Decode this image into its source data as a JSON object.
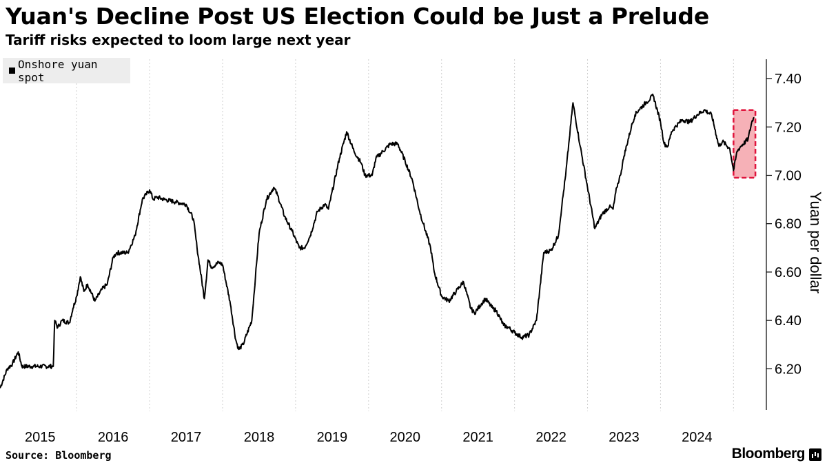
{
  "chart_data": {
    "type": "line",
    "title": "Yuan's Decline Post US Election Could be Just a Prelude",
    "subtitle": "Tariff risks expected to loom large next year",
    "ylabel": "Yuan per dollar",
    "xlabel": "",
    "ylim": [
      6.03,
      7.48
    ],
    "xlim": [
      2014.45,
      2024.95
    ],
    "y_ticks": [
      6.2,
      6.4,
      6.6,
      6.8,
      7.0,
      7.2,
      7.4
    ],
    "y_tick_labels": [
      "6.20",
      "6.40",
      "6.60",
      "6.80",
      "7.00",
      "7.20",
      "7.40"
    ],
    "x_ticks": [
      2015,
      2016,
      2017,
      2018,
      2019,
      2020,
      2021,
      2022,
      2023,
      2024
    ],
    "x_tick_labels": [
      "2015",
      "2016",
      "2017",
      "2018",
      "2019",
      "2020",
      "2021",
      "2022",
      "2023",
      "2024"
    ],
    "grid": "vertical dashed",
    "legend": {
      "label": "Onshore yuan spot",
      "position": "top-left"
    },
    "highlight": {
      "x_range": [
        2024.5,
        2024.8
      ],
      "y_range": [
        6.99,
        7.27
      ],
      "color": "#f4a3aa"
    },
    "series": [
      {
        "name": "Onshore yuan spot",
        "color": "#000000",
        "x": [
          2014.45,
          2014.55,
          2014.62,
          2014.7,
          2014.75,
          2014.8,
          2014.9,
          2015.0,
          2015.18,
          2015.2,
          2015.24,
          2015.3,
          2015.4,
          2015.45,
          2015.5,
          2015.55,
          2015.6,
          2015.65,
          2015.75,
          2015.85,
          2015.92,
          2016.0,
          2016.05,
          2016.2,
          2016.3,
          2016.4,
          2016.45,
          2016.5,
          2016.55,
          2016.6,
          2016.7,
          2016.85,
          2017.0,
          2017.1,
          2017.15,
          2017.25,
          2017.3,
          2017.35,
          2017.45,
          2017.5,
          2017.6,
          2017.68,
          2017.72,
          2017.78,
          2017.9,
          2017.95,
          2018.0,
          2018.1,
          2018.2,
          2018.25,
          2018.35,
          2018.45,
          2018.55,
          2018.62,
          2018.7,
          2018.8,
          2018.9,
          2018.95,
          2019.1,
          2019.2,
          2019.3,
          2019.4,
          2019.45,
          2019.55,
          2019.6,
          2019.7,
          2019.8,
          2019.9,
          2020.0,
          2020.1,
          2020.2,
          2020.25,
          2020.35,
          2020.4,
          2020.5,
          2020.6,
          2020.7,
          2020.8,
          2020.9,
          2020.95,
          2021.05,
          2021.1,
          2021.2,
          2021.25,
          2021.35,
          2021.42,
          2021.5,
          2021.6,
          2021.7,
          2021.8,
          2021.9,
          2022.0,
          2022.1,
          2022.15,
          2022.2,
          2022.25,
          2022.3,
          2022.4,
          2022.5,
          2022.6,
          2022.7,
          2022.8,
          2022.85,
          2022.9,
          2022.95,
          2023.0,
          2023.1,
          2023.15,
          2023.2,
          2023.3,
          2023.4,
          2023.5,
          2023.55,
          2023.6,
          2023.65,
          2023.7,
          2023.8,
          2023.9,
          2024.0,
          2024.1,
          2024.2,
          2024.3,
          2024.35,
          2024.45,
          2024.5,
          2024.55,
          2024.6,
          2024.7,
          2024.75,
          2024.78
        ],
        "y": [
          6.12,
          6.2,
          6.22,
          6.27,
          6.21,
          6.21,
          6.21,
          6.21,
          6.21,
          6.4,
          6.37,
          6.4,
          6.39,
          6.45,
          6.5,
          6.58,
          6.52,
          6.55,
          6.48,
          6.53,
          6.55,
          6.66,
          6.68,
          6.68,
          6.75,
          6.9,
          6.92,
          6.94,
          6.9,
          6.91,
          6.9,
          6.89,
          6.88,
          6.82,
          6.7,
          6.49,
          6.65,
          6.62,
          6.64,
          6.63,
          6.48,
          6.32,
          6.28,
          6.3,
          6.4,
          6.58,
          6.76,
          6.9,
          6.95,
          6.92,
          6.83,
          6.77,
          6.7,
          6.7,
          6.75,
          6.85,
          6.88,
          6.86,
          7.07,
          7.18,
          7.1,
          7.05,
          7.0,
          7.0,
          7.07,
          7.1,
          7.13,
          7.13,
          7.06,
          6.98,
          6.85,
          6.8,
          6.7,
          6.6,
          6.5,
          6.48,
          6.52,
          6.56,
          6.45,
          6.43,
          6.47,
          6.49,
          6.45,
          6.44,
          6.38,
          6.37,
          6.35,
          6.33,
          6.34,
          6.4,
          6.68,
          6.69,
          6.75,
          6.88,
          7.0,
          7.15,
          7.3,
          7.12,
          6.95,
          6.78,
          6.84,
          6.87,
          6.86,
          6.95,
          7.0,
          7.08,
          7.2,
          7.25,
          7.27,
          7.3,
          7.33,
          7.22,
          7.13,
          7.12,
          7.18,
          7.2,
          7.23,
          7.22,
          7.25,
          7.27,
          7.25,
          7.12,
          7.14,
          7.11,
          7.02,
          7.1,
          7.12,
          7.15,
          7.22,
          7.24
        ]
      }
    ]
  },
  "footer": {
    "source": "Source: Bloomberg",
    "brand": "Bloomberg",
    "brand_icon": "bar-chart-icon"
  }
}
